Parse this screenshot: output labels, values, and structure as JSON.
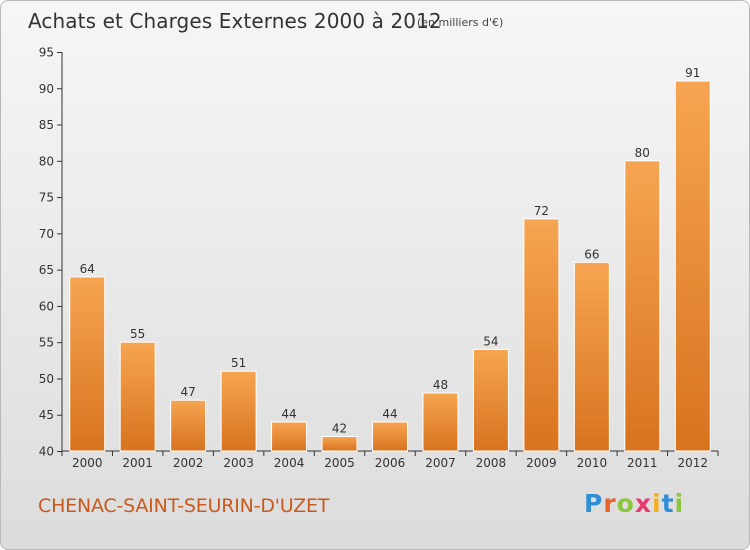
{
  "header": {
    "title": "Achats et Charges Externes 2000 à 2012",
    "unit": "(en milliers d'€)"
  },
  "footer": {
    "commune": "CHENAC-SAINT-SEURIN-D'UZET",
    "logo_letters": [
      "P",
      "r",
      "o",
      "x",
      "i",
      "t",
      "i"
    ],
    "logo_colors": [
      "#2f8fd6",
      "#e8642a",
      "#8cc63f",
      "#e83a6f",
      "#f2b01e",
      "#2f8fd6",
      "#8cc63f"
    ]
  },
  "colors": {
    "bar_top": "#f6a552",
    "bar_bottom": "#d8731e",
    "commune_text": "#c95a1c"
  },
  "chart_data": {
    "type": "bar",
    "title": "Achats et Charges Externes 2000 à 2012",
    "subtitle": "(en milliers d'€)",
    "xlabel": "",
    "ylabel": "",
    "categories": [
      "2000",
      "2001",
      "2002",
      "2003",
      "2004",
      "2005",
      "2006",
      "2007",
      "2008",
      "2009",
      "2010",
      "2011",
      "2012"
    ],
    "values": [
      64,
      55,
      47,
      51,
      44,
      42,
      44,
      48,
      54,
      72,
      66,
      80,
      91
    ],
    "ylim": [
      40,
      95
    ],
    "yticks": [
      "40",
      "45",
      "50",
      "55",
      "60",
      "65",
      "70",
      "75",
      "80",
      "85",
      "90",
      "95"
    ],
    "grid": false,
    "legend": "none",
    "data_labels": true
  }
}
